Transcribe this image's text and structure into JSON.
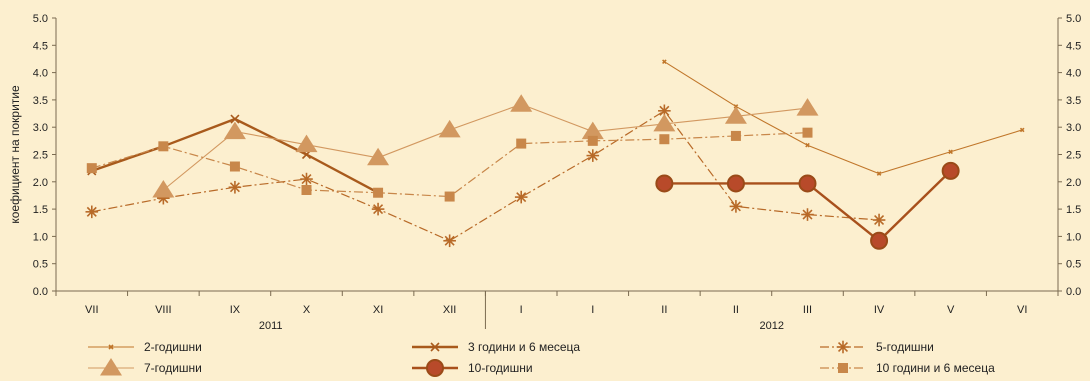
{
  "chart_data": {
    "type": "line",
    "ylabel": "коефициент на покритие",
    "ylim": [
      0,
      5
    ],
    "yticks": [
      "0.0",
      "0.5",
      "1.0",
      "1.5",
      "2.0",
      "2.5",
      "3.0",
      "3.5",
      "4.0",
      "4.5",
      "5.0"
    ],
    "categories": [
      "VII",
      "VIII",
      "IX",
      "X",
      "XI",
      "XII",
      "I",
      "I",
      "II",
      "II",
      "III",
      "IV",
      "V",
      "VI"
    ],
    "year_labels": [
      "2011",
      "2012"
    ],
    "grid": false,
    "legend_position": "bottom",
    "series": [
      {
        "name": "2-годишни",
        "color": "#c0762a",
        "style": "thin-solid",
        "marker": "x",
        "markersize": 6,
        "values": [
          null,
          null,
          null,
          null,
          null,
          null,
          null,
          null,
          4.2,
          3.38,
          2.67,
          2.15,
          2.55,
          2.95
        ]
      },
      {
        "name": "3 години и 6 месеца",
        "color": "#a85a1c",
        "style": "thick-solid",
        "marker": "x",
        "markersize": 8,
        "values": [
          2.2,
          2.65,
          3.15,
          2.5,
          1.8,
          null,
          null,
          null,
          null,
          null,
          null,
          null,
          null,
          null
        ]
      },
      {
        "name": "5-годишни",
        "color": "#b86a28",
        "style": "dashdot",
        "marker": "asterisk",
        "markersize": 7,
        "values": [
          1.45,
          1.7,
          1.9,
          2.05,
          1.5,
          0.92,
          1.72,
          2.48,
          3.3,
          1.55,
          1.4,
          1.3,
          null,
          null
        ]
      },
      {
        "name": "7-годишни",
        "color": "#d29860",
        "style": "thin-solid",
        "marker": "triangle",
        "markersize": 8,
        "values": [
          null,
          1.85,
          2.92,
          2.68,
          2.44,
          2.95,
          3.42,
          2.92,
          3.06,
          3.2,
          3.35,
          null,
          null,
          null
        ]
      },
      {
        "name": "10-годишни",
        "color": "#a8501c",
        "style": "thick-solid",
        "marker": "circle",
        "markersize": 8,
        "values": [
          null,
          null,
          null,
          null,
          null,
          null,
          null,
          null,
          1.97,
          1.97,
          1.97,
          0.92,
          2.2,
          null
        ]
      },
      {
        "name": "10 години и 6 месеца",
        "color": "#c8874a",
        "style": "dashdot",
        "marker": "square",
        "markersize": 5,
        "values": [
          2.25,
          2.65,
          2.28,
          1.85,
          1.8,
          1.73,
          2.7,
          2.75,
          2.78,
          2.84,
          2.9,
          null,
          null,
          null
        ]
      }
    ]
  }
}
